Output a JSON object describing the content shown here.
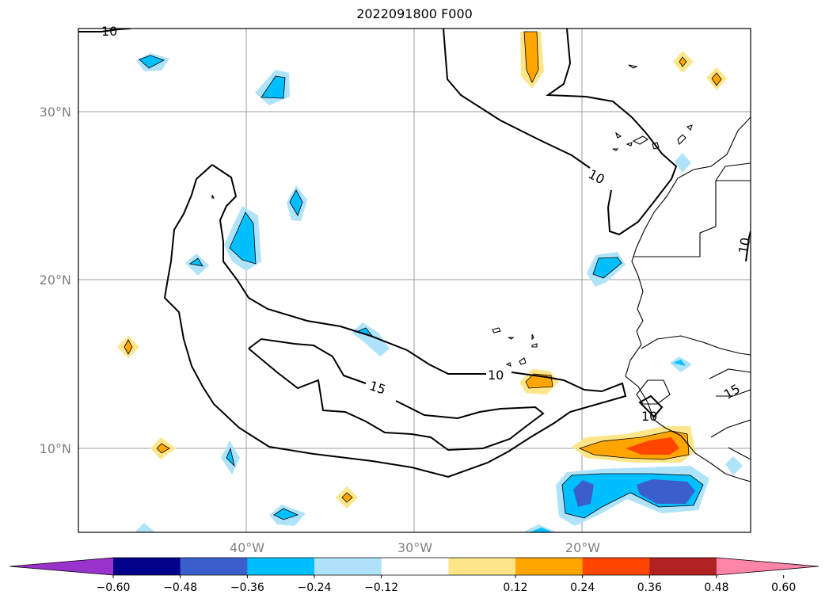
{
  "title": "2022091800 F000",
  "lat_labels": [
    "30°N",
    "20°N",
    "10°N"
  ],
  "lon_labels": [
    "40°W",
    "30°W",
    "20°W"
  ],
  "contour_labels": [
    "10",
    "10",
    "10",
    "15",
    "10",
    "15",
    "10"
  ],
  "colorbar": {
    "colors": [
      "#9933cc",
      "#00008b",
      "#3a5fcd",
      "#00bfff",
      "#aee3f9",
      "#ffffff",
      "#fde68a",
      "#ffa500",
      "#ff4500",
      "#b22222",
      "#ff85a8"
    ],
    "ticks": [
      "−0.60",
      "−0.48",
      "−0.36",
      "−0.24",
      "−0.12",
      "0.12",
      "0.24",
      "0.36",
      "0.48",
      "0.60"
    ]
  }
}
